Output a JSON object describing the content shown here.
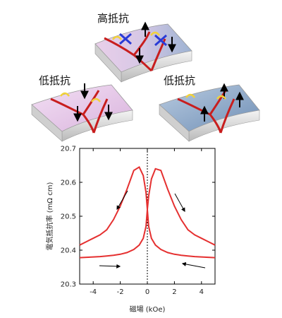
{
  "labels": {
    "top": "高抵抗",
    "left": "低抵抗",
    "right": "低抵抗"
  },
  "colors": {
    "curve": "#e53030",
    "boundary": "#c81e1e",
    "pink": "#e7c9e9",
    "blue": "#8da8c8",
    "cross": "#2a3bd6",
    "yellow": "#f2d23a"
  },
  "chart_data": {
    "type": "line",
    "xlabel": "磁場 (kOe)",
    "ylabel": "電気抵抗率 (mΩ cm)",
    "xlim": [
      -5,
      5
    ],
    "ylim": [
      20.3,
      20.7
    ],
    "xticks": [
      -4,
      -2,
      0,
      2,
      4
    ],
    "yticks": [
      20.3,
      20.4,
      20.5,
      20.6,
      20.7
    ],
    "xtick_labels": [
      "-4",
      "-2",
      "0",
      "2",
      "4"
    ],
    "ytick_labels": [
      "20.3",
      "20.4",
      "20.5",
      "20.6",
      "20.7"
    ],
    "vline_x": 0,
    "series": [
      {
        "x": [
          -5,
          -4.5,
          -4,
          -3.5,
          -3,
          -2.5,
          -2,
          -1.5,
          -1,
          -0.6,
          -0.3,
          -0.1,
          0,
          0.1,
          0.3,
          0.6,
          1,
          1.5,
          2,
          2.5,
          3,
          3.5,
          4,
          4.5,
          5
        ],
        "y": [
          20.378,
          20.379,
          20.38,
          20.381,
          20.383,
          20.385,
          20.388,
          20.393,
          20.402,
          20.415,
          20.435,
          20.47,
          20.52,
          20.56,
          20.61,
          20.64,
          20.635,
          20.58,
          20.53,
          20.49,
          20.46,
          20.445,
          20.435,
          20.425,
          20.415
        ]
      },
      {
        "x": [
          -5,
          -4.5,
          -4,
          -3.5,
          -3,
          -2.5,
          -2,
          -1.5,
          -1,
          -0.6,
          -0.3,
          -0.1,
          0,
          0.1,
          0.3,
          0.6,
          1,
          1.5,
          2,
          2.5,
          3,
          3.5,
          4,
          4.5,
          5
        ],
        "y": [
          20.415,
          20.425,
          20.435,
          20.445,
          20.46,
          20.49,
          20.53,
          20.58,
          20.635,
          20.645,
          20.62,
          20.57,
          20.52,
          20.47,
          20.435,
          20.415,
          20.402,
          20.393,
          20.388,
          20.385,
          20.383,
          20.381,
          20.38,
          20.379,
          20.378
        ]
      }
    ]
  }
}
